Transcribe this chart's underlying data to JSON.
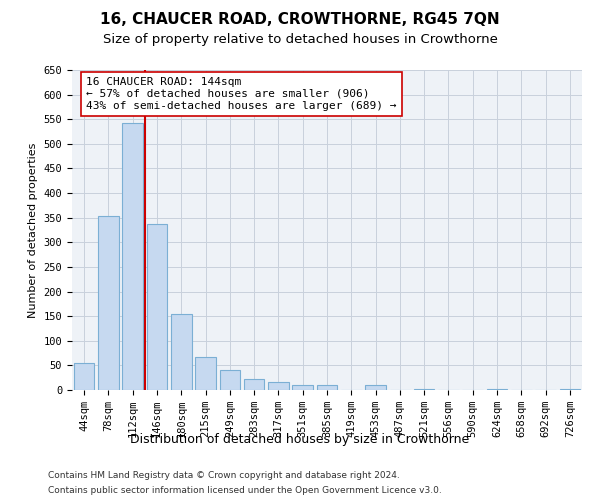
{
  "title": "16, CHAUCER ROAD, CROWTHORNE, RG45 7QN",
  "subtitle": "Size of property relative to detached houses in Crowthorne",
  "xlabel": "Distribution of detached houses by size in Crowthorne",
  "ylabel": "Number of detached properties",
  "bar_labels": [
    "44sqm",
    "78sqm",
    "112sqm",
    "146sqm",
    "180sqm",
    "215sqm",
    "249sqm",
    "283sqm",
    "317sqm",
    "351sqm",
    "385sqm",
    "419sqm",
    "453sqm",
    "487sqm",
    "521sqm",
    "556sqm",
    "590sqm",
    "624sqm",
    "658sqm",
    "692sqm",
    "726sqm"
  ],
  "bar_values": [
    55,
    353,
    542,
    338,
    155,
    68,
    40,
    23,
    16,
    10,
    10,
    0,
    10,
    0,
    3,
    0,
    0,
    3,
    0,
    0,
    3
  ],
  "bar_color": "#c6d9f0",
  "bar_edge_color": "#7bafd4",
  "vline_bin_index": 2.5,
  "vline_color": "#cc0000",
  "annotation_line1": "16 CHAUCER ROAD: 144sqm",
  "annotation_line2": "← 57% of detached houses are smaller (906)",
  "annotation_line3": "43% of semi-detached houses are larger (689) →",
  "annotation_box_color": "#ffffff",
  "annotation_box_edge_color": "#cc0000",
  "ylim": [
    0,
    650
  ],
  "yticks": [
    0,
    50,
    100,
    150,
    200,
    250,
    300,
    350,
    400,
    450,
    500,
    550,
    600,
    650
  ],
  "grid_color": "#c8d0dc",
  "background_color": "#eef2f7",
  "footer_line1": "Contains HM Land Registry data © Crown copyright and database right 2024.",
  "footer_line2": "Contains public sector information licensed under the Open Government Licence v3.0.",
  "title_fontsize": 11,
  "subtitle_fontsize": 9.5,
  "xlabel_fontsize": 9,
  "ylabel_fontsize": 8,
  "tick_fontsize": 7.5,
  "annotation_fontsize": 8,
  "footer_fontsize": 6.5
}
